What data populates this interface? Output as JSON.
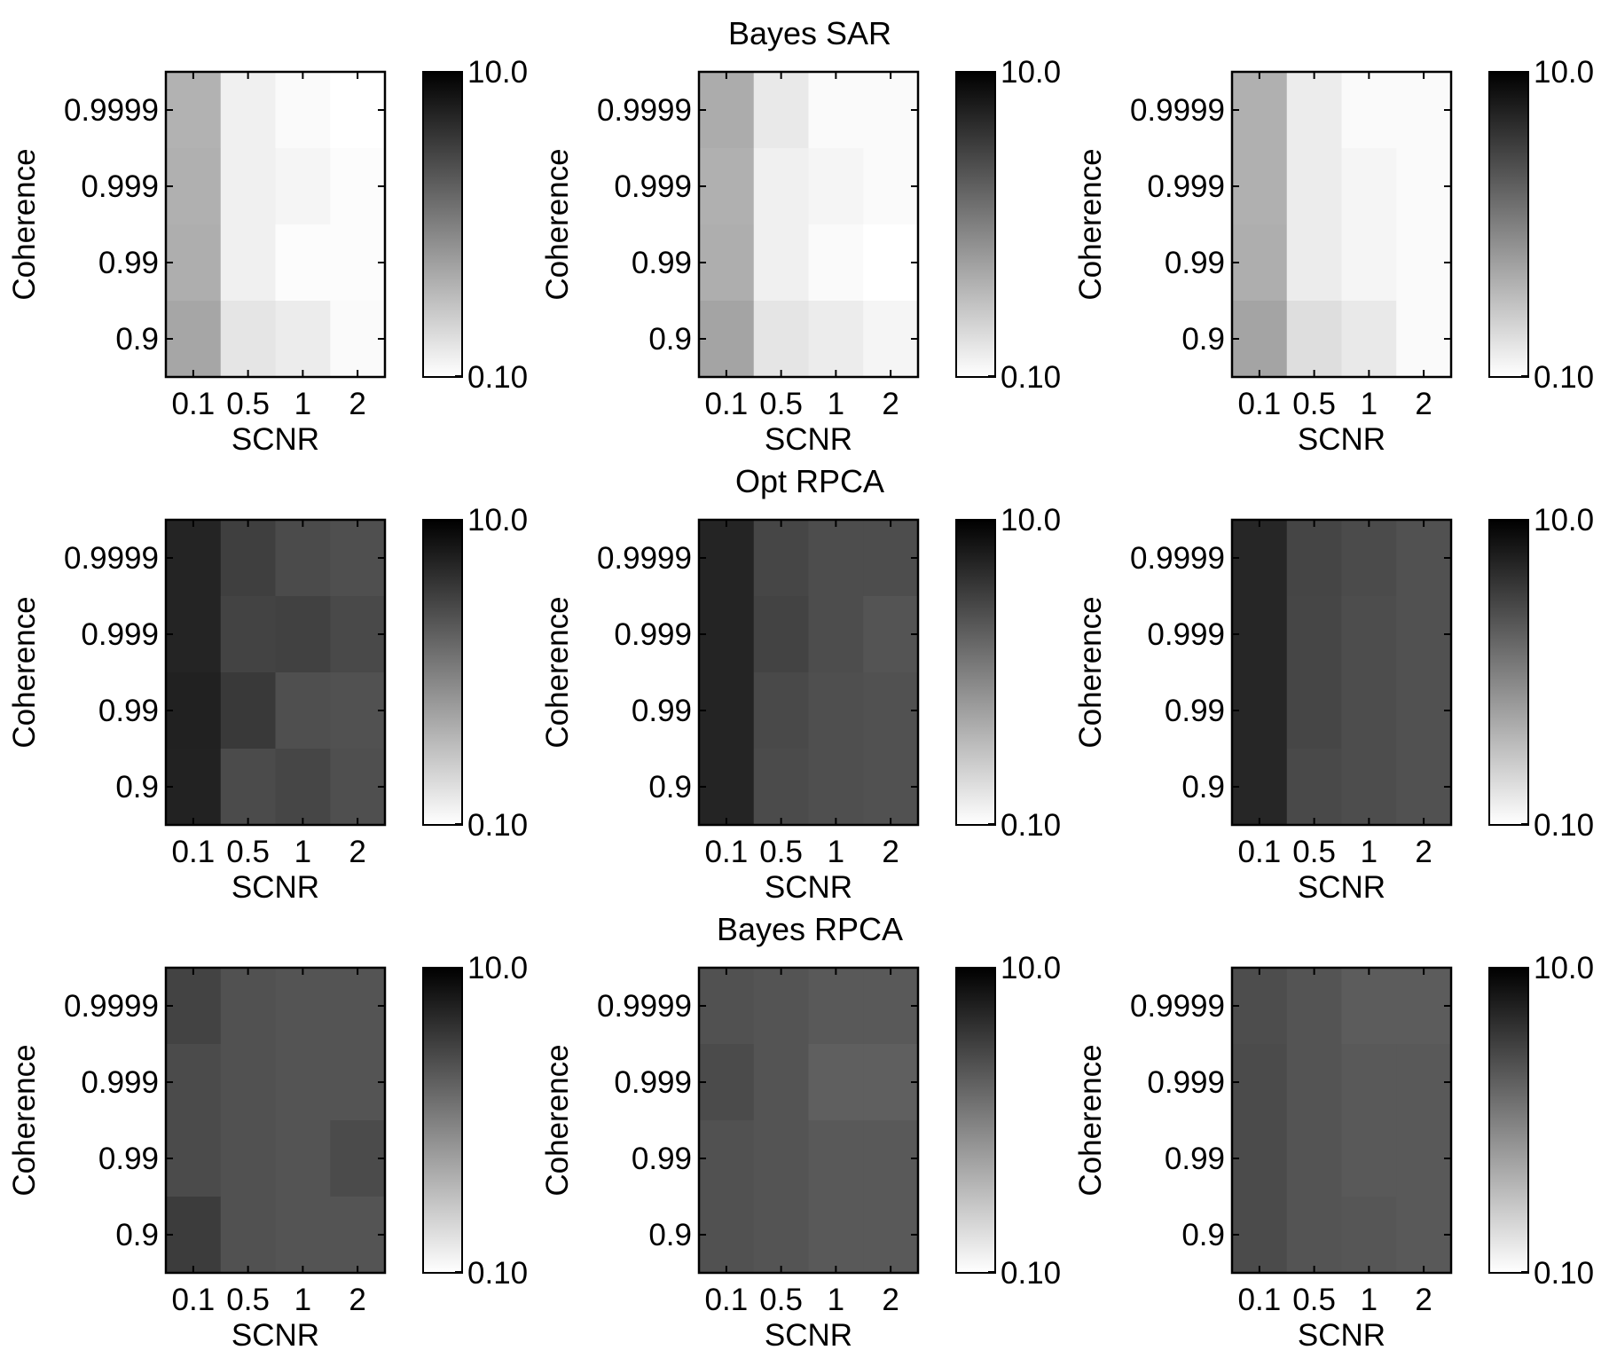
{
  "figure": {
    "row_titles": [
      "Bayes SAR",
      "Opt RPCA",
      "Bayes RPCA"
    ]
  },
  "chart_data": [
    {
      "type": "heatmap",
      "row": 0,
      "col": 0,
      "title": "Bayes SAR",
      "xlabel": "SCNR",
      "ylabel": "Coherence",
      "x": [
        "0.1",
        "0.5",
        "1",
        "2"
      ],
      "y": [
        "0.9999",
        "0.999",
        "0.99",
        "0.9"
      ],
      "color_range": [
        0.1,
        10.0
      ],
      "colorbar_ticks": [
        "10.0",
        "0.10"
      ],
      "scale": "log",
      "colormap": "gray-reversed",
      "z": [
        [
          0.4,
          0.13,
          0.11,
          0.1
        ],
        [
          0.42,
          0.13,
          0.12,
          0.105
        ],
        [
          0.43,
          0.13,
          0.105,
          0.105
        ],
        [
          0.5,
          0.16,
          0.14,
          0.11
        ]
      ]
    },
    {
      "type": "heatmap",
      "row": 0,
      "col": 1,
      "title": "",
      "xlabel": "SCNR",
      "ylabel": "Coherence",
      "x": [
        "0.1",
        "0.5",
        "1",
        "2"
      ],
      "y": [
        "0.9999",
        "0.999",
        "0.99",
        "0.9"
      ],
      "color_range": [
        0.1,
        10.0
      ],
      "colorbar_ticks": [
        "10.0",
        "0.10"
      ],
      "scale": "log",
      "colormap": "gray-reversed",
      "z": [
        [
          0.45,
          0.15,
          0.11,
          0.11
        ],
        [
          0.42,
          0.13,
          0.12,
          0.11
        ],
        [
          0.43,
          0.13,
          0.11,
          0.1
        ],
        [
          0.52,
          0.16,
          0.14,
          0.12
        ]
      ]
    },
    {
      "type": "heatmap",
      "row": 0,
      "col": 2,
      "title": "",
      "xlabel": "SCNR",
      "ylabel": "Coherence",
      "x": [
        "0.1",
        "0.5",
        "1",
        "2"
      ],
      "y": [
        "0.9999",
        "0.999",
        "0.99",
        "0.9"
      ],
      "color_range": [
        0.1,
        10.0
      ],
      "colorbar_ticks": [
        "10.0",
        "0.10"
      ],
      "scale": "log",
      "colormap": "gray-reversed",
      "z": [
        [
          0.42,
          0.14,
          0.11,
          0.11
        ],
        [
          0.42,
          0.14,
          0.12,
          0.11
        ],
        [
          0.43,
          0.14,
          0.12,
          0.11
        ],
        [
          0.52,
          0.18,
          0.15,
          0.11
        ]
      ]
    },
    {
      "type": "heatmap",
      "row": 1,
      "col": 0,
      "title": "Opt RPCA",
      "xlabel": "SCNR",
      "ylabel": "Coherence",
      "x": [
        "0.1",
        "0.5",
        "1",
        "2"
      ],
      "y": [
        "0.9999",
        "0.999",
        "0.99",
        "0.9"
      ],
      "color_range": [
        0.1,
        10.0
      ],
      "colorbar_ticks": [
        "10.0",
        "0.10"
      ],
      "scale": "log",
      "colormap": "gray-reversed",
      "z": [
        [
          5.2,
          3.2,
          2.6,
          2.4
        ],
        [
          5.2,
          3.0,
          3.1,
          2.7
        ],
        [
          5.5,
          3.6,
          2.4,
          2.3
        ],
        [
          5.4,
          2.6,
          2.8,
          2.4
        ]
      ]
    },
    {
      "type": "heatmap",
      "row": 1,
      "col": 1,
      "title": "",
      "xlabel": "SCNR",
      "ylabel": "Coherence",
      "x": [
        "0.1",
        "0.5",
        "1",
        "2"
      ],
      "y": [
        "0.9999",
        "0.999",
        "0.99",
        "0.9"
      ],
      "color_range": [
        0.1,
        10.0
      ],
      "colorbar_ticks": [
        "10.0",
        "0.10"
      ],
      "scale": "log",
      "colormap": "gray-reversed",
      "z": [
        [
          5.2,
          2.8,
          2.5,
          2.5
        ],
        [
          5.2,
          3.0,
          2.5,
          2.2
        ],
        [
          5.2,
          2.7,
          2.4,
          2.3
        ],
        [
          5.2,
          2.6,
          2.4,
          2.3
        ]
      ]
    },
    {
      "type": "heatmap",
      "row": 1,
      "col": 2,
      "title": "",
      "xlabel": "SCNR",
      "ylabel": "Coherence",
      "x": [
        "0.1",
        "0.5",
        "1",
        "2"
      ],
      "y": [
        "0.9999",
        "0.999",
        "0.99",
        "0.9"
      ],
      "color_range": [
        0.1,
        10.0
      ],
      "colorbar_ticks": [
        "10.0",
        "0.10"
      ],
      "scale": "log",
      "colormap": "gray-reversed",
      "z": [
        [
          5.0,
          2.9,
          2.6,
          2.3
        ],
        [
          5.0,
          2.8,
          2.5,
          2.3
        ],
        [
          5.0,
          2.8,
          2.5,
          2.3
        ],
        [
          5.0,
          2.7,
          2.5,
          2.3
        ]
      ]
    },
    {
      "type": "heatmap",
      "row": 2,
      "col": 0,
      "title": "Bayes RPCA",
      "xlabel": "SCNR",
      "ylabel": "Coherence",
      "x": [
        "0.1",
        "0.5",
        "1",
        "2"
      ],
      "y": [
        "0.9999",
        "0.999",
        "0.99",
        "0.9"
      ],
      "color_range": [
        0.1,
        10.0
      ],
      "colorbar_ticks": [
        "10.0",
        "0.10"
      ],
      "scale": "log",
      "colormap": "gray-reversed",
      "z": [
        [
          3.0,
          2.3,
          2.2,
          2.2
        ],
        [
          2.6,
          2.3,
          2.2,
          2.2
        ],
        [
          2.6,
          2.3,
          2.2,
          2.6
        ],
        [
          3.4,
          2.3,
          2.2,
          2.2
        ]
      ]
    },
    {
      "type": "heatmap",
      "row": 2,
      "col": 1,
      "title": "",
      "xlabel": "SCNR",
      "ylabel": "Coherence",
      "x": [
        "0.1",
        "0.5",
        "1",
        "2"
      ],
      "y": [
        "0.9999",
        "0.999",
        "0.99",
        "0.9"
      ],
      "color_range": [
        0.1,
        10.0
      ],
      "colorbar_ticks": [
        "10.0",
        "0.10"
      ],
      "scale": "log",
      "colormap": "gray-reversed",
      "z": [
        [
          2.3,
          2.2,
          2.0,
          2.0
        ],
        [
          2.6,
          2.2,
          1.8,
          1.8
        ],
        [
          2.3,
          2.2,
          2.0,
          2.0
        ],
        [
          2.3,
          2.2,
          2.0,
          2.0
        ]
      ]
    },
    {
      "type": "heatmap",
      "row": 2,
      "col": 2,
      "title": "",
      "xlabel": "SCNR",
      "ylabel": "Coherence",
      "x": [
        "0.1",
        "0.5",
        "1",
        "2"
      ],
      "y": [
        "0.9999",
        "0.999",
        "0.99",
        "0.9"
      ],
      "color_range": [
        0.1,
        10.0
      ],
      "colorbar_ticks": [
        "10.0",
        "0.10"
      ],
      "scale": "log",
      "colormap": "gray-reversed",
      "z": [
        [
          2.5,
          2.2,
          1.9,
          1.9
        ],
        [
          2.6,
          2.2,
          2.0,
          2.0
        ],
        [
          2.6,
          2.2,
          2.0,
          2.0
        ],
        [
          2.6,
          2.2,
          2.1,
          2.0
        ]
      ]
    }
  ]
}
